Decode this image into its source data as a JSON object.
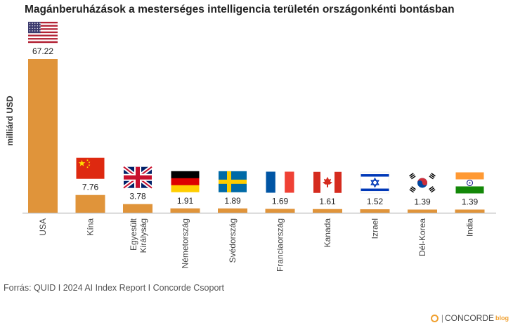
{
  "title": "Magánberuházások a mesterséges intelligencia területén országonkénti bontásban",
  "source": "Forrás: QUID I 2024 AI Index Report I Concorde Csoport",
  "brand": {
    "name": "CONCORDE",
    "suffix": "blog",
    "separator": "|"
  },
  "colors": {
    "bar": "#e0943a",
    "axis": "#bbbbbb"
  },
  "chart_data": {
    "type": "bar",
    "title": "Magánberuházások a mesterséges intelligencia területén országonkénti bontásban",
    "ylabel": "milliárd USD",
    "xlabel": "",
    "ylim": [
      0,
      67.22
    ],
    "grid": false,
    "legend": "none",
    "categories": [
      "USA",
      "Kína",
      "Egyesült Királyság",
      "Németország",
      "Svédország",
      "Franciaország",
      "Kanada",
      "Izrael",
      "Dél-Korea",
      "India"
    ],
    "category_label_lines": [
      [
        "USA"
      ],
      [
        "Kína"
      ],
      [
        "Egyesült",
        "Királyság"
      ],
      [
        "Németország"
      ],
      [
        "Svédország"
      ],
      [
        "Franciaország"
      ],
      [
        "Kanada"
      ],
      [
        "Izrael"
      ],
      [
        "Dél-Korea"
      ],
      [
        "India"
      ]
    ],
    "values": [
      67.22,
      7.76,
      3.78,
      1.91,
      1.89,
      1.69,
      1.61,
      1.52,
      1.39,
      1.39
    ],
    "value_labels": [
      "67.22",
      "7.76",
      "3.78",
      "1.91",
      "1.89",
      "1.69",
      "1.61",
      "1.52",
      "1.39",
      "1.39"
    ],
    "flags": [
      "usa-flag-icon",
      "china-flag-icon",
      "uk-flag-icon",
      "germany-flag-icon",
      "sweden-flag-icon",
      "france-flag-icon",
      "canada-flag-icon",
      "israel-flag-icon",
      "south-korea-flag-icon",
      "india-flag-icon"
    ]
  }
}
